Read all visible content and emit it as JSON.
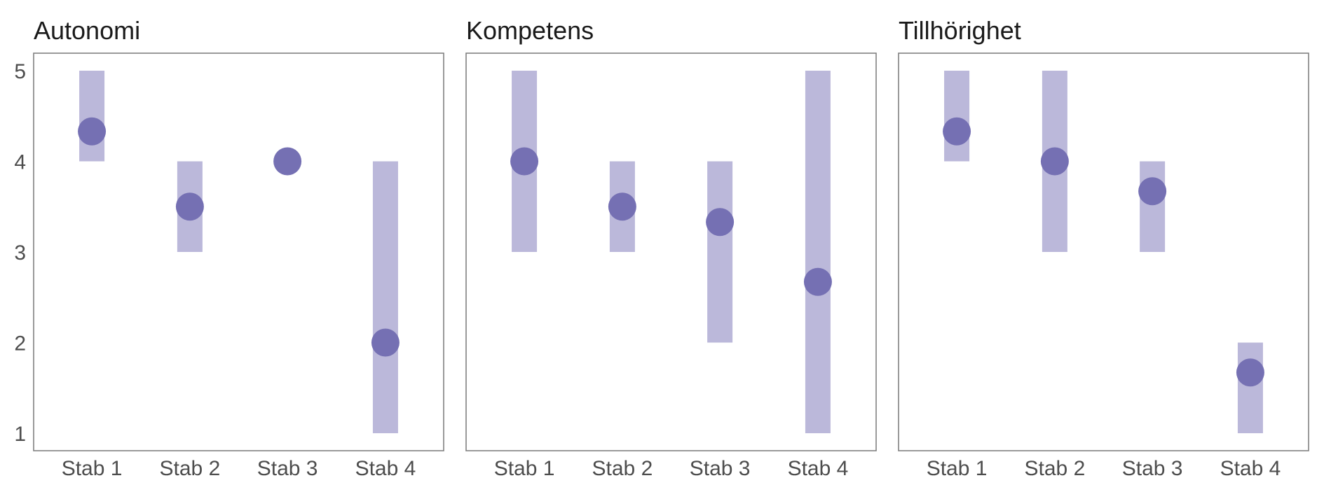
{
  "chart_data": [
    {
      "type": "range-dot",
      "title": "Autonomi",
      "categories": [
        "Stab 1",
        "Stab 2",
        "Stab 3",
        "Stab 4"
      ],
      "ranges": [
        [
          4,
          5
        ],
        [
          3,
          4
        ],
        [
          4,
          4
        ],
        [
          1,
          4
        ]
      ],
      "values": [
        4.33,
        3.5,
        4.0,
        2.0
      ],
      "ylim": [
        1,
        5
      ],
      "yticks": [
        "1",
        "2",
        "3",
        "4",
        "5"
      ],
      "grid": false
    },
    {
      "type": "range-dot",
      "title": "Kompetens",
      "categories": [
        "Stab 1",
        "Stab 2",
        "Stab 3",
        "Stab 4"
      ],
      "ranges": [
        [
          3,
          5
        ],
        [
          3,
          4
        ],
        [
          2,
          4
        ],
        [
          1,
          5
        ]
      ],
      "values": [
        4.0,
        3.5,
        3.33,
        2.67
      ],
      "ylim": [
        1,
        5
      ],
      "grid": false
    },
    {
      "type": "range-dot",
      "title": "Tillhörighet",
      "categories": [
        "Stab 1",
        "Stab 2",
        "Stab 3",
        "Stab 4"
      ],
      "ranges": [
        [
          4,
          5
        ],
        [
          3,
          5
        ],
        [
          3,
          4
        ],
        [
          1,
          2
        ]
      ],
      "values": [
        4.33,
        4.0,
        3.67,
        1.67
      ],
      "ylim": [
        1,
        5
      ],
      "grid": false
    }
  ],
  "colors": {
    "range": "#bbb8da",
    "point": "#7570b3",
    "frame": "#808080",
    "title": "#1a1a1a",
    "tick": "#4d4d4d"
  }
}
